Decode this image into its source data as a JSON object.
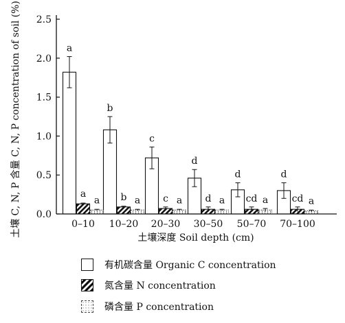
{
  "chart_data": {
    "type": "bar",
    "ylabel": "土壤 C, N, P 含量 C, N, P concentration of soil (%)",
    "xlabel": "土壤深度  Soil depth (cm)",
    "categories": [
      "0–10",
      "10–20",
      "20–30",
      "30–50",
      "50–70",
      "70–100"
    ],
    "ylim": [
      0,
      2.5
    ],
    "yticks": [
      "0.0",
      "0.5",
      "1.0",
      "1.5",
      "2.0",
      "2.5"
    ],
    "series": [
      {
        "name": "有机碳含量 Organic C concentration",
        "pattern": "open",
        "values": [
          1.82,
          1.08,
          0.72,
          0.46,
          0.31,
          0.3
        ],
        "errors": [
          0.2,
          0.17,
          0.14,
          0.11,
          0.09,
          0.1
        ],
        "letters": [
          "a",
          "b",
          "c",
          "d",
          "d",
          "d"
        ]
      },
      {
        "name": "氮含量  N concentration",
        "pattern": "hatched",
        "values": [
          0.13,
          0.09,
          0.07,
          0.06,
          0.06,
          0.06
        ],
        "errors": [
          0.01,
          0.01,
          0.02,
          0.03,
          0.03,
          0.03
        ],
        "letters": [
          "a",
          "b",
          "c",
          "d",
          "cd",
          "cd"
        ]
      },
      {
        "name": "磷含量  P concentration",
        "pattern": "dotted",
        "values": [
          0.05,
          0.05,
          0.05,
          0.05,
          0.05,
          0.04
        ],
        "errors": [
          0.01,
          0.01,
          0.01,
          0.01,
          0.02,
          0.01
        ],
        "letters": [
          "a",
          "a",
          "a",
          "a",
          "a",
          "a"
        ]
      }
    ],
    "grid": false,
    "legend_position": "bottom"
  },
  "colors": {
    "ink": "#111111",
    "fill": "#ffffff"
  }
}
